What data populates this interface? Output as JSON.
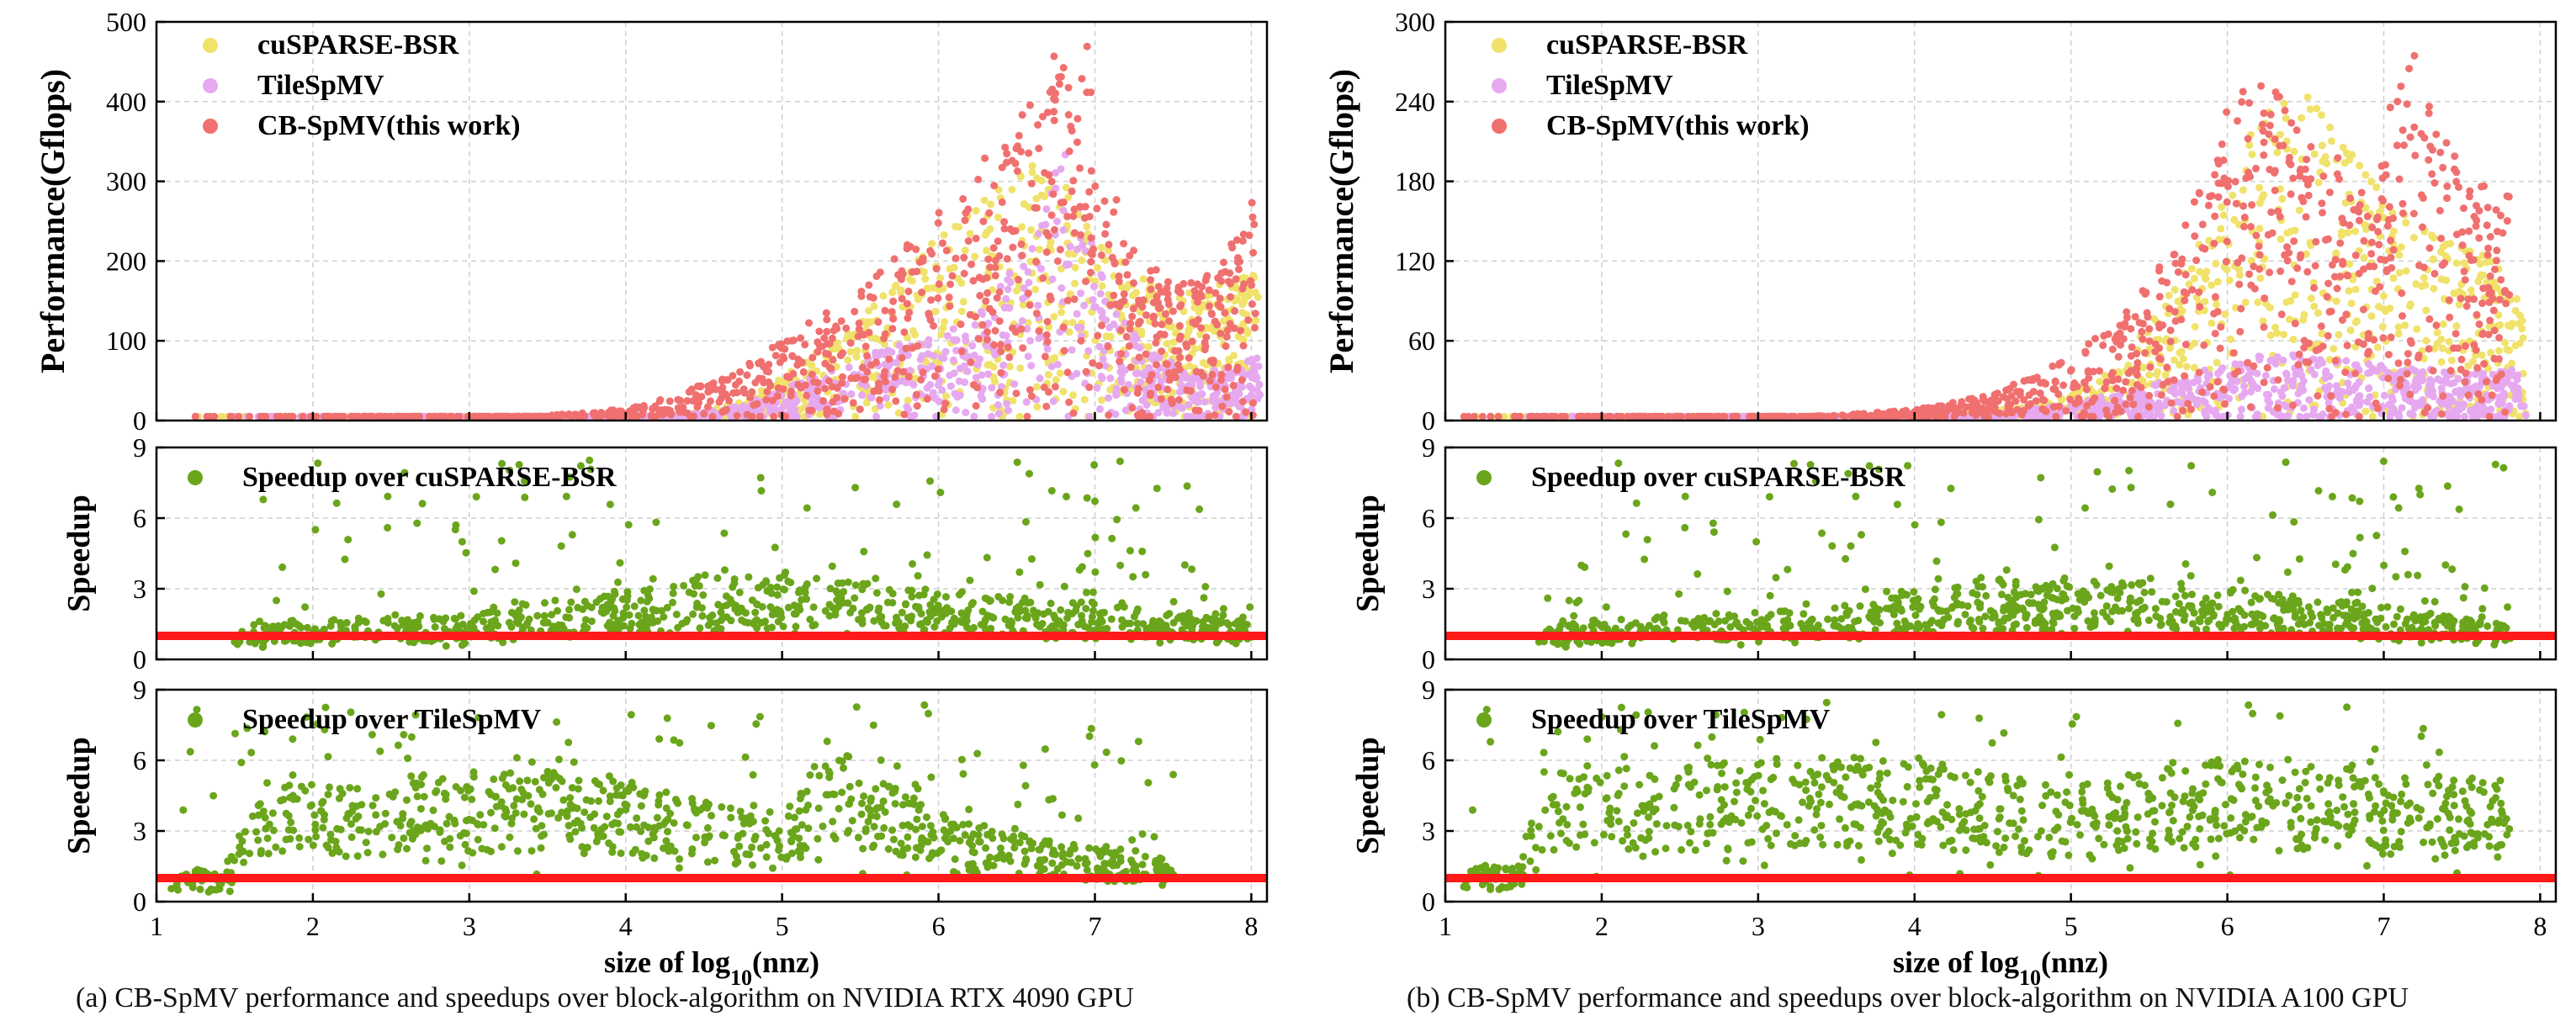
{
  "figure": {
    "caption_a": "(a) CB-SpMV performance and speedups over block-algorithm on NVIDIA RTX 4090 GPU",
    "caption_b": "(b) CB-SpMV performance and speedups over block-algorithm on NVIDIA A100 GPU"
  },
  "chart_data": [
    {
      "id": "a-performance",
      "type": "scatter",
      "title": "",
      "xlabel": "",
      "ylabel": "Performance(Gflops)",
      "xlim": [
        1,
        8.1
      ],
      "ylim": [
        0,
        500
      ],
      "yticks": [
        0,
        100,
        200,
        300,
        400,
        500
      ],
      "xticks": [
        1,
        2,
        3,
        4,
        5,
        6,
        7,
        8
      ],
      "grid": true,
      "legend_position": "top-left",
      "series": [
        {
          "name": "cuSPARSE-BSR",
          "color": "#f0e26a",
          "values": [
            [
              1.2,
              0
            ],
            [
              2,
              0
            ],
            [
              3,
              1
            ],
            [
              4,
              3
            ],
            [
              4.5,
              12
            ],
            [
              4.8,
              28
            ],
            [
              5.0,
              55
            ],
            [
              5.2,
              85
            ],
            [
              5.4,
              110
            ],
            [
              5.6,
              150
            ],
            [
              5.8,
              190
            ],
            [
              6.0,
              230
            ],
            [
              6.2,
              270
            ],
            [
              6.4,
              300
            ],
            [
              6.6,
              330
            ],
            [
              6.8,
              300
            ],
            [
              7.0,
              240
            ],
            [
              7.3,
              180
            ],
            [
              7.6,
              160
            ],
            [
              7.9,
              180
            ],
            [
              8.05,
              200
            ]
          ]
        },
        {
          "name": "TileSpMV",
          "color": "#e6a9f0",
          "values": [
            [
              1.2,
              0
            ],
            [
              2,
              0
            ],
            [
              3,
              1
            ],
            [
              4,
              3
            ],
            [
              4.5,
              10
            ],
            [
              4.8,
              22
            ],
            [
              5.0,
              40
            ],
            [
              5.2,
              55
            ],
            [
              5.4,
              70
            ],
            [
              5.6,
              85
            ],
            [
              5.8,
              100
            ],
            [
              6.0,
              110
            ],
            [
              6.2,
              120
            ],
            [
              6.4,
              180
            ],
            [
              6.6,
              230
            ],
            [
              6.8,
              350
            ],
            [
              7.0,
              200
            ],
            [
              7.3,
              90
            ],
            [
              7.6,
              60
            ],
            [
              7.9,
              70
            ],
            [
              8.05,
              80
            ]
          ]
        },
        {
          "name": "CB-SpMV(this work)",
          "color": "#f07070",
          "values": [
            [
              1.2,
              0
            ],
            [
              2,
              1
            ],
            [
              3,
              3
            ],
            [
              3.5,
              6
            ],
            [
              4,
              15
            ],
            [
              4.3,
              30
            ],
            [
              4.6,
              55
            ],
            [
              4.8,
              75
            ],
            [
              5.0,
              100
            ],
            [
              5.2,
              125
            ],
            [
              5.4,
              150
            ],
            [
              5.6,
              190
            ],
            [
              5.8,
              220
            ],
            [
              6.0,
              260
            ],
            [
              6.2,
              300
            ],
            [
              6.4,
              360
            ],
            [
              6.6,
              420
            ],
            [
              6.8,
              470
            ],
            [
              6.95,
              480
            ],
            [
              7.2,
              220
            ],
            [
              7.5,
              170
            ],
            [
              7.8,
              190
            ],
            [
              8.05,
              300
            ]
          ]
        }
      ]
    },
    {
      "id": "a-speedup-bsr",
      "type": "scatter",
      "ylabel": "Speedup",
      "xlim": [
        1,
        8.1
      ],
      "ylim": [
        0,
        9
      ],
      "yticks": [
        0,
        3,
        6,
        9
      ],
      "xticks": [
        1,
        2,
        3,
        4,
        5,
        6,
        7,
        8
      ],
      "grid": true,
      "baseline": 1,
      "series": [
        {
          "name": "Speedup over cuSPARSE-BSR",
          "color": "#6aa51b",
          "values": [
            [
              1.5,
              1.2
            ],
            [
              2,
              1.3
            ],
            [
              3,
              1.4
            ],
            [
              3.5,
              2.0
            ],
            [
              4,
              2.2
            ],
            [
              4.5,
              2.6
            ],
            [
              5,
              2.8
            ],
            [
              5.5,
              2.5
            ],
            [
              6,
              2.3
            ],
            [
              6.5,
              2.0
            ],
            [
              7,
              1.8
            ],
            [
              7.5,
              1.5
            ],
            [
              8,
              1.3
            ]
          ]
        }
      ]
    },
    {
      "id": "a-speedup-tile",
      "type": "scatter",
      "ylabel": "Speedup",
      "xlabel": "size of log10(nnz)",
      "xlim": [
        1,
        8.1
      ],
      "ylim": [
        0,
        9
      ],
      "yticks": [
        0,
        3,
        6,
        9
      ],
      "xticks": [
        1,
        2,
        3,
        4,
        5,
        6,
        7,
        8
      ],
      "grid": true,
      "baseline": 1,
      "series": [
        {
          "name": "Speedup over TileSpMV",
          "color": "#6aa51b",
          "values": [
            [
              1.1,
              1.0
            ],
            [
              1.5,
              1.0
            ],
            [
              1.6,
              4.0
            ],
            [
              2,
              4.0
            ],
            [
              3,
              4.2
            ],
            [
              3.5,
              4.3
            ],
            [
              4,
              3.9
            ],
            [
              4.5,
              3.3
            ],
            [
              5,
              2.8
            ],
            [
              5.3,
              5.5
            ],
            [
              5.6,
              4.2
            ],
            [
              6,
              3.0
            ],
            [
              6.5,
              2.2
            ],
            [
              7,
              1.8
            ],
            [
              7.5,
              1.5
            ]
          ]
        }
      ]
    },
    {
      "id": "b-performance",
      "type": "scatter",
      "ylabel": "Performance(Gflops)",
      "xlim": [
        1,
        8.1
      ],
      "ylim": [
        0,
        300
      ],
      "yticks": [
        0,
        60,
        120,
        180,
        240,
        300
      ],
      "xticks": [
        1,
        2,
        3,
        4,
        5,
        6,
        7,
        8
      ],
      "grid": true,
      "legend_position": "top-left",
      "series": [
        {
          "name": "cuSPARSE-BSR",
          "color": "#f0e26a",
          "values": [
            [
              1,
              0
            ],
            [
              2,
              0
            ],
            [
              3,
              1
            ],
            [
              4,
              3
            ],
            [
              4.5,
              8
            ],
            [
              5,
              20
            ],
            [
              5.3,
              40
            ],
            [
              5.6,
              90
            ],
            [
              5.9,
              150
            ],
            [
              6.2,
              230
            ],
            [
              6.5,
              250
            ],
            [
              6.8,
              200
            ],
            [
              7.1,
              160
            ],
            [
              7.4,
              140
            ],
            [
              7.7,
              120
            ],
            [
              7.9,
              90
            ]
          ]
        },
        {
          "name": "TileSpMV",
          "color": "#e6a9f0",
          "values": [
            [
              1,
              0
            ],
            [
              2,
              0
            ],
            [
              3,
              0.5
            ],
            [
              4,
              2
            ],
            [
              4.5,
              5
            ],
            [
              5,
              12
            ],
            [
              5.3,
              20
            ],
            [
              5.6,
              30
            ],
            [
              5.9,
              40
            ],
            [
              6.2,
              50
            ],
            [
              6.5,
              50
            ],
            [
              6.8,
              45
            ],
            [
              7.1,
              40
            ],
            [
              7.4,
              38
            ],
            [
              7.7,
              36
            ],
            [
              7.9,
              40
            ]
          ]
        },
        {
          "name": "CB-SpMV(this work)",
          "color": "#f07070",
          "values": [
            [
              1,
              0
            ],
            [
              2,
              0.5
            ],
            [
              3,
              2
            ],
            [
              3.5,
              4
            ],
            [
              4,
              8
            ],
            [
              4.5,
              20
            ],
            [
              4.8,
              35
            ],
            [
              5,
              50
            ],
            [
              5.3,
              75
            ],
            [
              5.6,
              120
            ],
            [
              5.9,
              200
            ],
            [
              6.1,
              270
            ],
            [
              6.3,
              260
            ],
            [
              6.6,
              210
            ],
            [
              6.9,
              190
            ],
            [
              7.2,
              280
            ],
            [
              7.5,
              190
            ],
            [
              7.8,
              170
            ]
          ]
        }
      ]
    },
    {
      "id": "b-speedup-bsr",
      "type": "scatter",
      "ylabel": "Speedup",
      "xlim": [
        1,
        8.1
      ],
      "ylim": [
        0,
        9
      ],
      "yticks": [
        0,
        3,
        6,
        9
      ],
      "xticks": [
        1,
        2,
        3,
        4,
        5,
        6,
        7,
        8
      ],
      "grid": true,
      "baseline": 1,
      "series": [
        {
          "name": "Speedup over cuSPARSE-BSR",
          "color": "#6aa51b",
          "values": [
            [
              1.6,
              1.2
            ],
            [
              2,
              1.3
            ],
            [
              3,
              1.5
            ],
            [
              3.5,
              1.8
            ],
            [
              4,
              2.2
            ],
            [
              4.5,
              2.6
            ],
            [
              5,
              2.6
            ],
            [
              5.5,
              2.5
            ],
            [
              6,
              2.3
            ],
            [
              6.5,
              2.0
            ],
            [
              7,
              1.7
            ],
            [
              7.5,
              1.4
            ],
            [
              7.8,
              1.2
            ]
          ]
        }
      ]
    },
    {
      "id": "b-speedup-tile",
      "type": "scatter",
      "ylabel": "Speedup",
      "xlabel": "size of log10(nnz)",
      "xlim": [
        1,
        8.1
      ],
      "ylim": [
        0,
        9
      ],
      "yticks": [
        0,
        3,
        6,
        9
      ],
      "xticks": [
        1,
        2,
        3,
        4,
        5,
        6,
        7,
        8
      ],
      "grid": true,
      "baseline": 1,
      "series": [
        {
          "name": "Speedup over TileSpMV",
          "color": "#6aa51b",
          "values": [
            [
              1.1,
              1.2
            ],
            [
              1.5,
              1.2
            ],
            [
              1.6,
              4.3
            ],
            [
              2,
              4.3
            ],
            [
              3,
              4.6
            ],
            [
              3.5,
              4.8
            ],
            [
              4,
              4.6
            ],
            [
              4.5,
              4.2
            ],
            [
              5,
              3.8
            ],
            [
              5.5,
              4.5
            ],
            [
              6,
              4.8
            ],
            [
              6.5,
              4.5
            ],
            [
              7,
              4.2
            ],
            [
              7.5,
              4.0
            ],
            [
              7.8,
              3.9
            ]
          ]
        }
      ]
    }
  ]
}
